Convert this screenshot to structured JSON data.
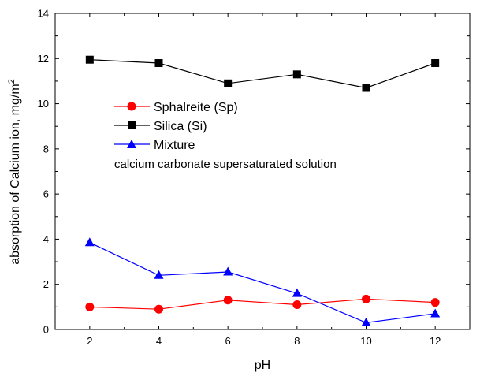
{
  "chart_data": {
    "type": "line",
    "title": "",
    "xlabel": "pH",
    "ylabel": "absorption of Calcium ion, mg/m",
    "ylabel_superscript": "2",
    "x": [
      2,
      4,
      6,
      8,
      10,
      12
    ],
    "xlim": [
      1,
      13
    ],
    "ylim": [
      0,
      14
    ],
    "xticks": [
      "2",
      "4",
      "6",
      "8",
      "10",
      "12"
    ],
    "yticks": [
      "0",
      "2",
      "4",
      "6",
      "8",
      "10",
      "12",
      "14"
    ],
    "grid": false,
    "legend_position": "center-left",
    "series": [
      {
        "name": "Sphalreite (Sp)",
        "values": [
          1.0,
          0.9,
          1.3,
          1.1,
          1.35,
          1.2
        ],
        "color": "#ff0000",
        "marker": "circle"
      },
      {
        "name": "Silica (Si)",
        "values": [
          11.95,
          11.8,
          10.9,
          11.3,
          10.7,
          11.8
        ],
        "color": "#000000",
        "marker": "square"
      },
      {
        "name": "Mixture",
        "values": [
          3.85,
          2.4,
          2.55,
          1.6,
          0.3,
          0.7
        ],
        "color": "#0000ff",
        "marker": "triangle"
      }
    ],
    "annotation": "calcium carbonate supersaturated solution"
  }
}
